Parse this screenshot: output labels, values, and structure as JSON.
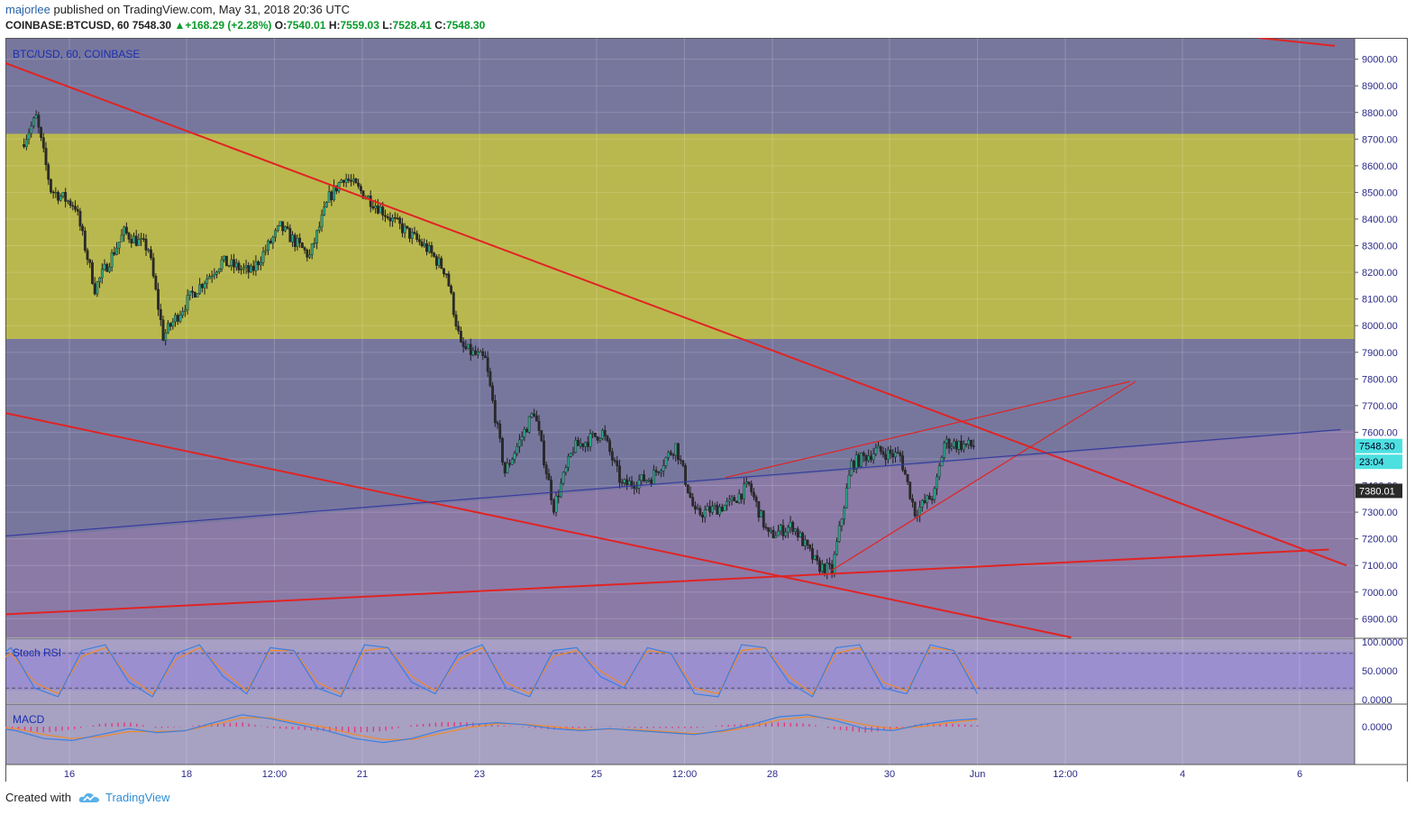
{
  "header": {
    "user": "majorlee",
    "published": " published on TradingView.com, May 31, 2018 20:36 UTC",
    "symbol": "COINBASE:BTCUSD, 60",
    "last": "7548.30",
    "change": "▲+168.29 (+2.28%)",
    "o_label": "O:",
    "o": "7540.01",
    "h_label": "H:",
    "h": "7559.03",
    "l_label": "L:",
    "l": "7528.41",
    "c_label": "C:",
    "c": "7548.30"
  },
  "chart_title": "BTC/USD, 60, COINBASE",
  "price_tag": "7548.30",
  "countdown_tag": "23:04",
  "level_tag": "7380.01",
  "stoch_label": "Stoch RSI",
  "macd_label": "MACD",
  "footer": {
    "created": "Created with",
    "brand": "TradingView"
  },
  "colors": {
    "bg_purple": "#77779e",
    "zone_yellow": "#b9b84e",
    "lower_zone": "#8b7aa6",
    "trendline": "#e02424",
    "accent_blue": "#2962a8",
    "candle_up": "#2aa889",
    "candle_down": "#2a2a2a",
    "stoch_k": "#3b7fe0",
    "stoch_d": "#f0892a",
    "macd_line": "#3b7fe0",
    "signal_line": "#f0892a",
    "macd_hist": "#e03a7a"
  },
  "chart_data": [
    {
      "type": "candlestick",
      "title": "BTC/USD, 60, COINBASE",
      "ylim": [
        6830,
        9080
      ],
      "y_ticks": [
        "9000.00",
        "8900.00",
        "8800.00",
        "8700.00",
        "8600.00",
        "8500.00",
        "8400.00",
        "8300.00",
        "8200.00",
        "8100.00",
        "8000.00",
        "7900.00",
        "7800.00",
        "7700.00",
        "7600.00",
        "7500.00",
        "7400.00",
        "7300.00",
        "7200.00",
        "7100.00",
        "7000.00",
        "6900.00"
      ],
      "x_ticks": [
        "16",
        "18",
        "12:00",
        "21",
        "23",
        "25",
        "12:00",
        "28",
        "30",
        "Jun",
        "12:00",
        "4",
        "6"
      ],
      "approx_close_path": [
        {
          "t": "May 15 14:00",
          "v": 8680
        },
        {
          "t": "May 15 20:00",
          "v": 8780
        },
        {
          "t": "May 16 02:00",
          "v": 8510
        },
        {
          "t": "May 16 12:00",
          "v": 8450
        },
        {
          "t": "May 16 20:00",
          "v": 8140
        },
        {
          "t": "May 17 08:00",
          "v": 8350
        },
        {
          "t": "May 17 18:00",
          "v": 8290
        },
        {
          "t": "May 18 00:00",
          "v": 7960
        },
        {
          "t": "May 18 12:00",
          "v": 8120
        },
        {
          "t": "May 19 00:00",
          "v": 8240
        },
        {
          "t": "May 19 12:00",
          "v": 8200
        },
        {
          "t": "May 20 00:00",
          "v": 8370
        },
        {
          "t": "May 20 12:00",
          "v": 8260
        },
        {
          "t": "May 20 20:00",
          "v": 8480
        },
        {
          "t": "May 21 02:00",
          "v": 8560
        },
        {
          "t": "May 21 12:00",
          "v": 8480
        },
        {
          "t": "May 22 00:00",
          "v": 8380
        },
        {
          "t": "May 22 12:00",
          "v": 8290
        },
        {
          "t": "May 22 20:00",
          "v": 8200
        },
        {
          "t": "May 23 02:00",
          "v": 7920
        },
        {
          "t": "May 23 12:00",
          "v": 7870
        },
        {
          "t": "May 23 20:00",
          "v": 7450
        },
        {
          "t": "May 24 08:00",
          "v": 7680
        },
        {
          "t": "May 24 16:00",
          "v": 7320
        },
        {
          "t": "May 25 00:00",
          "v": 7540
        },
        {
          "t": "May 25 12:00",
          "v": 7600
        },
        {
          "t": "May 25 20:00",
          "v": 7400
        },
        {
          "t": "May 26 08:00",
          "v": 7430
        },
        {
          "t": "May 26 18:00",
          "v": 7550
        },
        {
          "t": "May 27 02:00",
          "v": 7290
        },
        {
          "t": "May 27 16:00",
          "v": 7330
        },
        {
          "t": "May 28 00:00",
          "v": 7400
        },
        {
          "t": "May 28 08:00",
          "v": 7210
        },
        {
          "t": "May 28 18:00",
          "v": 7250
        },
        {
          "t": "May 29 04:00",
          "v": 7100
        },
        {
          "t": "May 29 10:00",
          "v": 7080
        },
        {
          "t": "May 29 18:00",
          "v": 7480
        },
        {
          "t": "May 30 04:00",
          "v": 7530
        },
        {
          "t": "May 30 14:00",
          "v": 7510
        },
        {
          "t": "May 30 20:00",
          "v": 7300
        },
        {
          "t": "May 31 04:00",
          "v": 7370
        },
        {
          "t": "May 31 08:00",
          "v": 7560
        },
        {
          "t": "May 31 20:00",
          "v": 7548
        }
      ]
    },
    {
      "type": "line",
      "title": "Stoch RSI",
      "ylim": [
        0,
        100
      ],
      "y_ticks": [
        "100.0000",
        "50.0000",
        "0.0000"
      ],
      "series": [
        {
          "name": "K",
          "values": [
            60,
            90,
            20,
            5,
            85,
            95,
            30,
            5,
            80,
            95,
            40,
            10,
            90,
            85,
            20,
            5,
            95,
            90,
            30,
            10,
            80,
            95,
            20,
            5,
            85,
            90,
            40,
            20,
            90,
            80,
            10,
            5,
            95,
            90,
            30,
            5,
            90,
            95,
            20,
            10,
            95,
            85,
            10
          ]
        },
        {
          "name": "D",
          "values": [
            55,
            80,
            30,
            10,
            75,
            90,
            40,
            10,
            70,
            90,
            50,
            15,
            85,
            85,
            30,
            10,
            85,
            90,
            40,
            15,
            70,
            90,
            30,
            10,
            75,
            85,
            50,
            25,
            85,
            80,
            20,
            10,
            85,
            90,
            40,
            10,
            80,
            90,
            30,
            15,
            90,
            85,
            20
          ]
        }
      ]
    },
    {
      "type": "line",
      "title": "MACD",
      "y_ticks": [
        "0.0000"
      ],
      "series": [
        {
          "name": "MACD",
          "values": [
            0,
            -20,
            -60,
            -70,
            -40,
            -10,
            -30,
            -20,
            20,
            60,
            40,
            10,
            -20,
            -60,
            -80,
            -60,
            -20,
            10,
            20,
            10,
            -10,
            -20,
            -10,
            -20,
            -30,
            -40,
            -20,
            10,
            50,
            60,
            30,
            -10,
            -20,
            10,
            30,
            40
          ]
        },
        {
          "name": "Signal",
          "values": [
            0,
            -10,
            -40,
            -60,
            -50,
            -25,
            -25,
            -20,
            10,
            45,
            45,
            20,
            -5,
            -40,
            -65,
            -65,
            -35,
            -5,
            15,
            12,
            0,
            -15,
            -12,
            -15,
            -25,
            -35,
            -25,
            0,
            35,
            50,
            40,
            10,
            -10,
            0,
            20,
            35
          ]
        }
      ]
    }
  ]
}
